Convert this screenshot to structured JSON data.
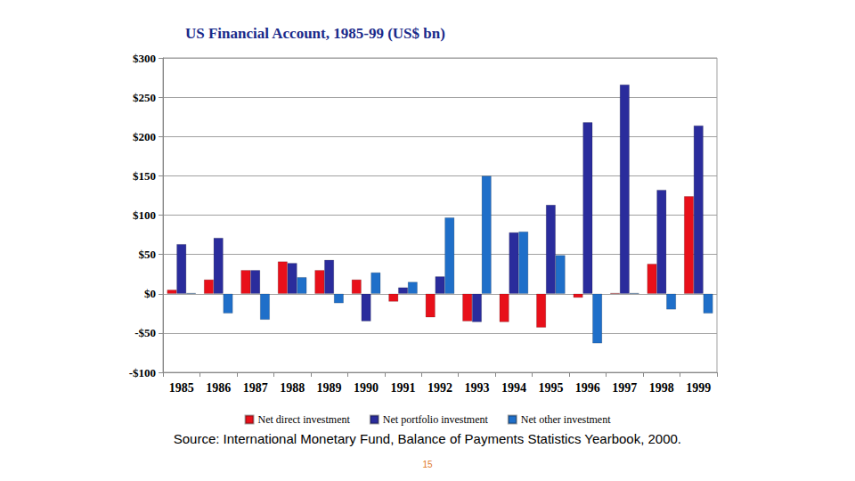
{
  "chart_data": {
    "type": "bar",
    "title": "US Financial Account, 1985-99 (US$ bn)",
    "categories": [
      "1985",
      "1986",
      "1987",
      "1988",
      "1989",
      "1990",
      "1991",
      "1992",
      "1993",
      "1994",
      "1995",
      "1996",
      "1997",
      "1998",
      "1999"
    ],
    "series": [
      {
        "name": "Net direct investment",
        "color": "#e8101a",
        "values": [
          5,
          18,
          30,
          41,
          30,
          18,
          -10,
          -30,
          -35,
          -36,
          -43,
          -5,
          1,
          38,
          124
        ]
      },
      {
        "name": "Net portfolio investment",
        "color": "#2a2c9c",
        "values": [
          63,
          71,
          30,
          39,
          43,
          -35,
          8,
          22,
          -36,
          78,
          113,
          218,
          266,
          132,
          214
        ]
      },
      {
        "name": "Net other investment",
        "color": "#1f6fc9",
        "values": [
          1,
          -25,
          -33,
          21,
          -12,
          27,
          15,
          97,
          150,
          79,
          49,
          -63,
          1,
          -20,
          -25
        ]
      }
    ],
    "ylim": [
      -100,
      300
    ],
    "yticks": [
      {
        "value": -100,
        "label": "-$100"
      },
      {
        "value": -50,
        "label": "-$50"
      },
      {
        "value": 0,
        "label": "$0"
      },
      {
        "value": 50,
        "label": "$50"
      },
      {
        "value": 100,
        "label": "$100"
      },
      {
        "value": 150,
        "label": "$150"
      },
      {
        "value": 200,
        "label": "$200"
      },
      {
        "value": 250,
        "label": "$250"
      },
      {
        "value": 300,
        "label": "$300"
      }
    ],
    "grid": true,
    "legend": "bottom",
    "annotations": [
      "Source: International Monetary Fund, Balance of Payments Statistics Yearbook, 2000.",
      "15"
    ]
  }
}
